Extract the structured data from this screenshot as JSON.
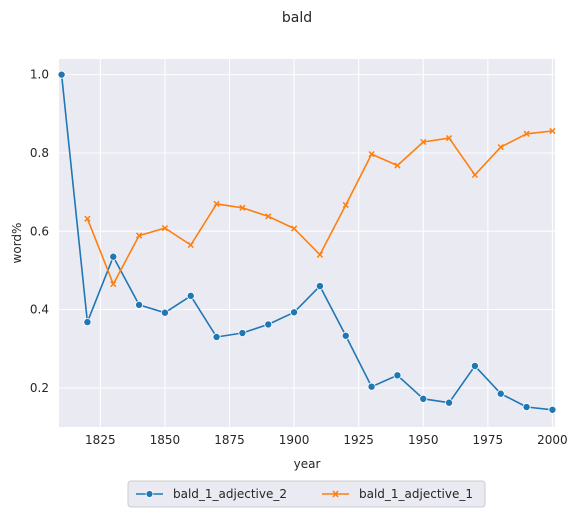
{
  "chart_data": {
    "type": "line",
    "title": "bald",
    "xlabel": "year",
    "ylabel": "word%",
    "xlim": [
      1809,
      2001
    ],
    "ylim": [
      0.1,
      1.04
    ],
    "x_ticks": [
      1825,
      1850,
      1875,
      1900,
      1925,
      1950,
      1975,
      2000
    ],
    "y_ticks": [
      0.2,
      0.4,
      0.6,
      0.8,
      1.0
    ],
    "grid": true,
    "legend_position": "bottom-center",
    "series": [
      {
        "name": "bald_1_adjective_2",
        "color": "#1f77b4",
        "marker": "circle",
        "points": [
          [
            1810,
            1.0
          ],
          [
            1820,
            0.368
          ],
          [
            1830,
            0.535
          ],
          [
            1840,
            0.412
          ],
          [
            1850,
            0.392
          ],
          [
            1860,
            0.435
          ],
          [
            1870,
            0.33
          ],
          [
            1880,
            0.34
          ],
          [
            1890,
            0.362
          ],
          [
            1900,
            0.393
          ],
          [
            1910,
            0.46
          ],
          [
            1920,
            0.333
          ],
          [
            1930,
            0.203
          ],
          [
            1940,
            0.232
          ],
          [
            1950,
            0.172
          ],
          [
            1960,
            0.162
          ],
          [
            1970,
            0.256
          ],
          [
            1980,
            0.185
          ],
          [
            1990,
            0.151
          ],
          [
            2000,
            0.144
          ]
        ]
      },
      {
        "name": "bald_1_adjective_1",
        "color": "#ff7f0e",
        "marker": "x",
        "points": [
          [
            1820,
            0.632
          ],
          [
            1830,
            0.465
          ],
          [
            1840,
            0.589
          ],
          [
            1850,
            0.608
          ],
          [
            1860,
            0.565
          ],
          [
            1870,
            0.67
          ],
          [
            1880,
            0.66
          ],
          [
            1890,
            0.638
          ],
          [
            1900,
            0.607
          ],
          [
            1910,
            0.54
          ],
          [
            1920,
            0.667
          ],
          [
            1930,
            0.797
          ],
          [
            1940,
            0.768
          ],
          [
            1950,
            0.828
          ],
          [
            1960,
            0.838
          ],
          [
            1970,
            0.744
          ],
          [
            1980,
            0.815
          ],
          [
            1990,
            0.849
          ],
          [
            2000,
            0.856
          ]
        ]
      }
    ]
  }
}
